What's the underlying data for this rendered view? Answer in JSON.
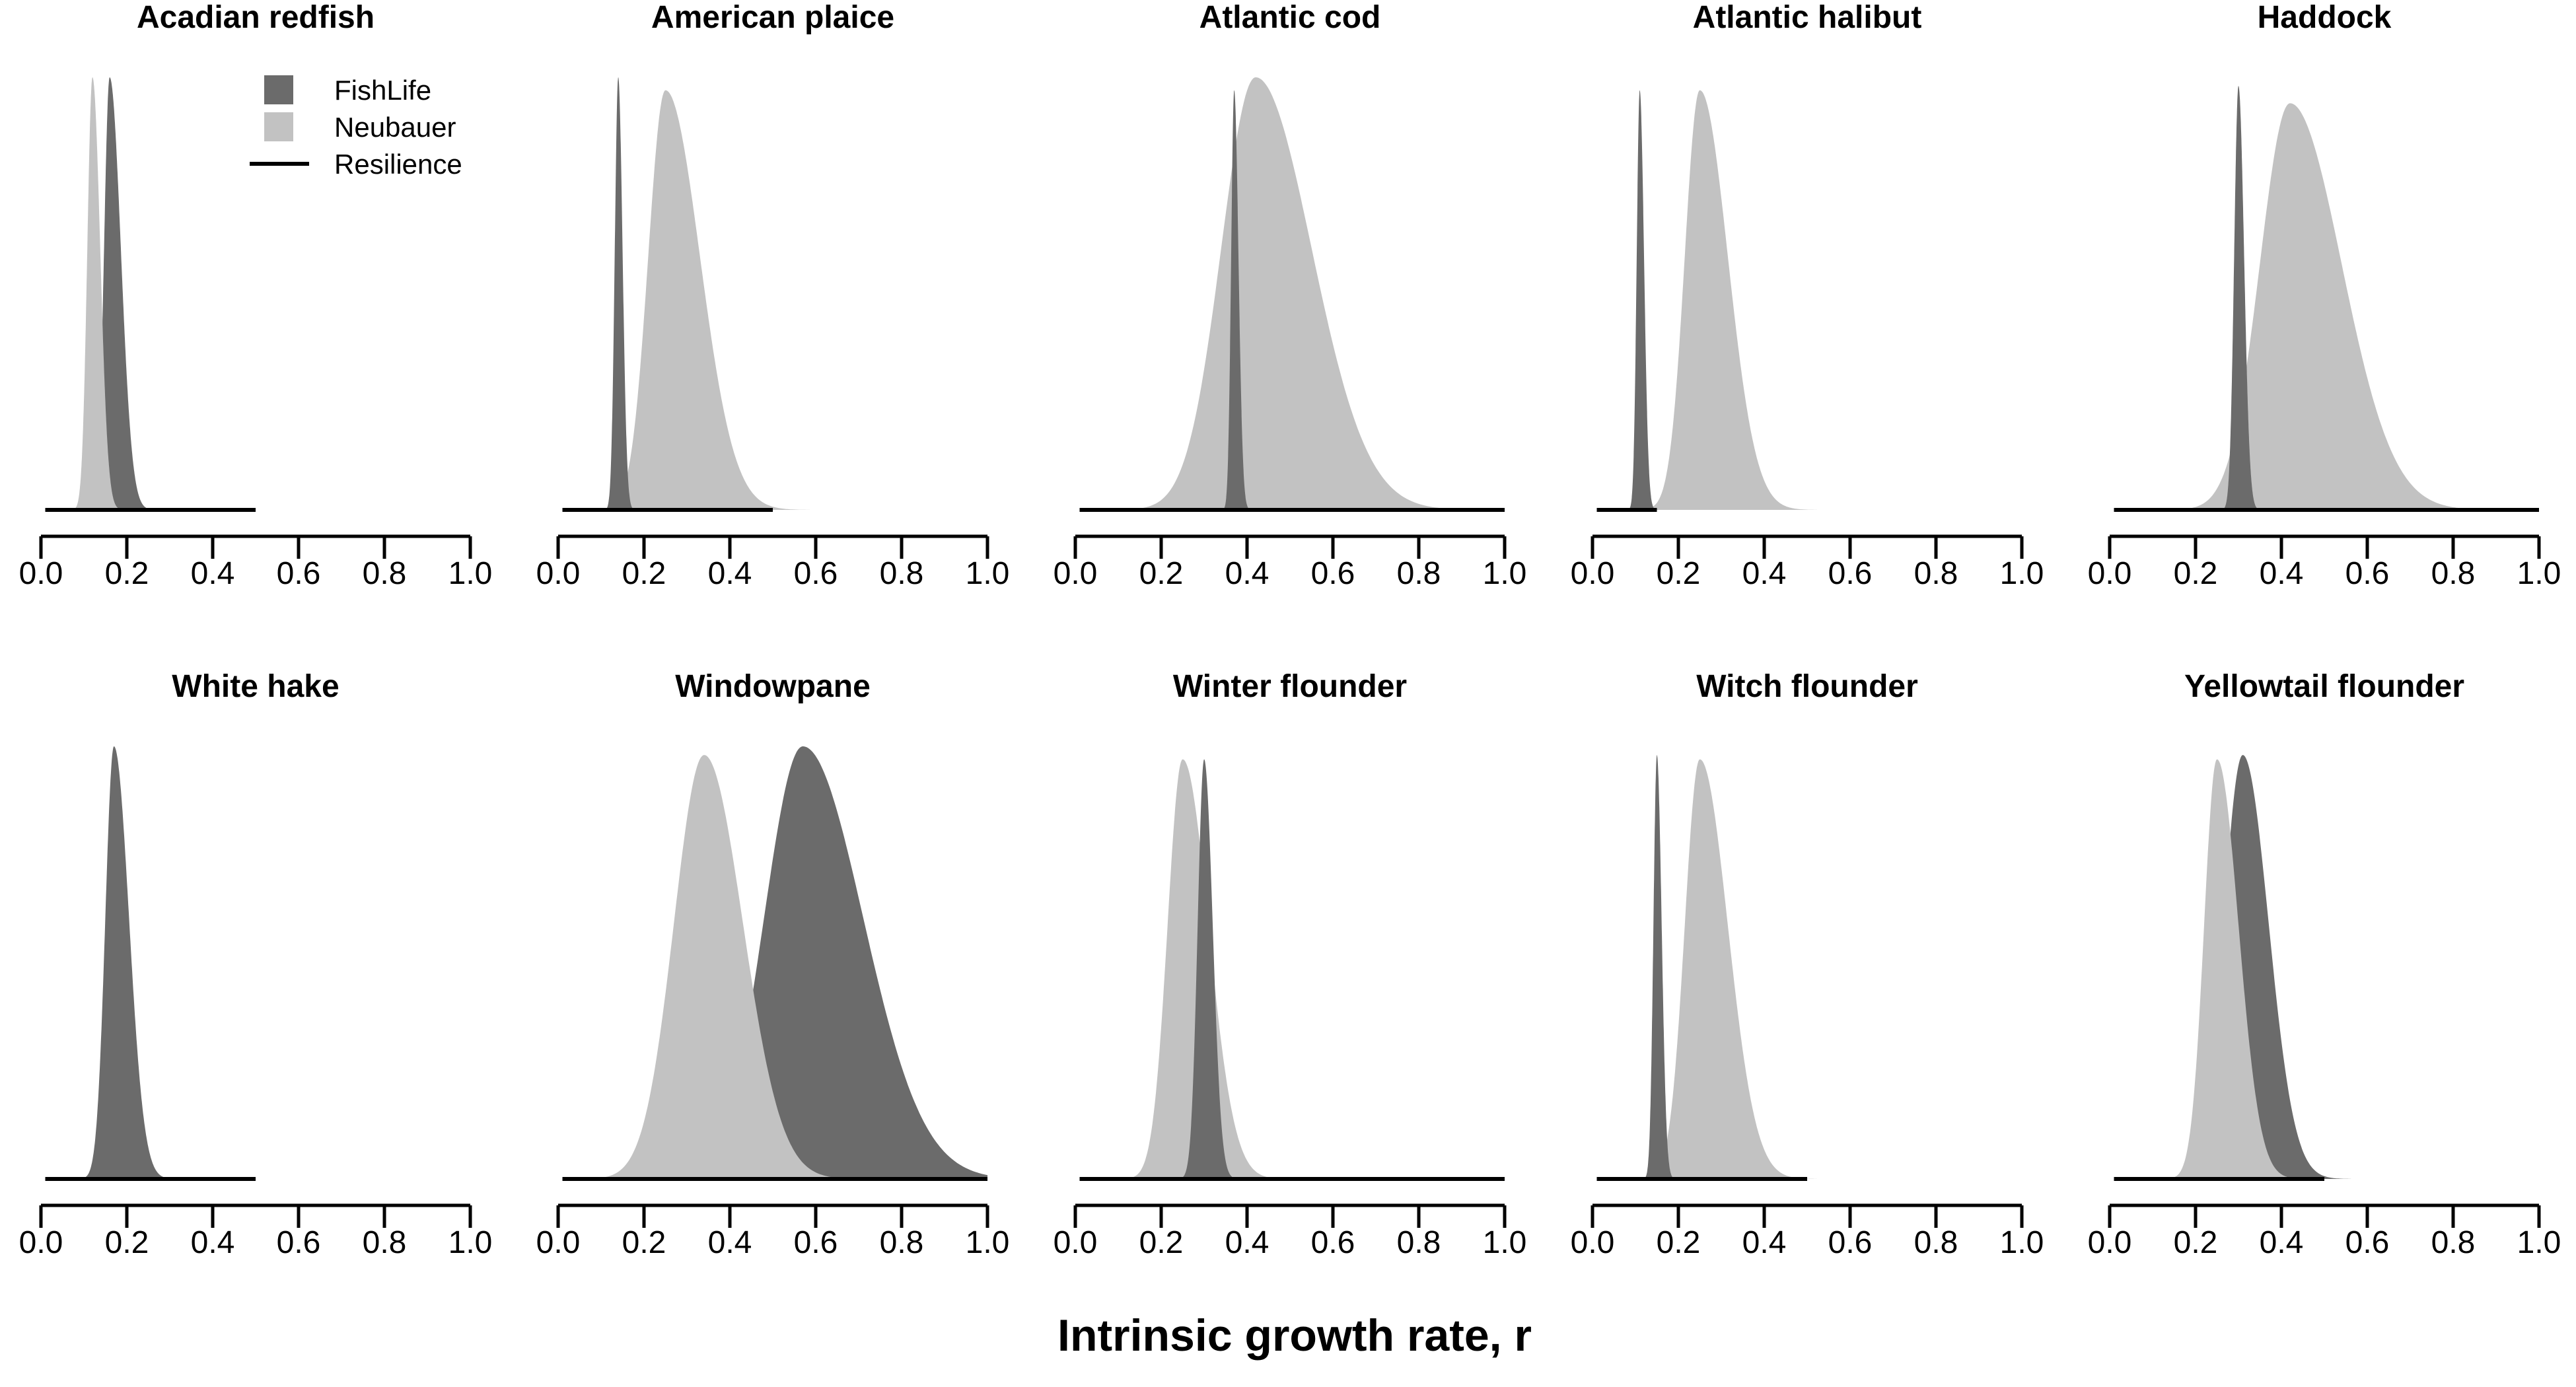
{
  "chart_data": {
    "type": "area",
    "xlabel": "Intrinsic growth rate, r",
    "xlim": [
      0,
      1
    ],
    "xticks": [
      0.0,
      0.2,
      0.4,
      0.6,
      0.8,
      1.0
    ],
    "xtick_labels": [
      "0.0",
      "0.2",
      "0.4",
      "0.6",
      "0.8",
      "1.0"
    ],
    "grid": false,
    "legend": {
      "placement": "top-right of first panel",
      "entries": [
        {
          "label": "FishLife",
          "kind": "fill",
          "color": "#6b6b6b"
        },
        {
          "label": "Neubauer",
          "kind": "fill",
          "color": "#c2c2c2"
        },
        {
          "label": "Resilience",
          "kind": "line",
          "color": "#000000"
        }
      ]
    },
    "colors": {
      "fishlife": "#6b6b6b",
      "neubauer": "#c2c2c2",
      "resilience": "#000000"
    },
    "panels": [
      {
        "title": "Acadian redfish",
        "resilience": [
          0.01,
          0.5
        ],
        "fishlife": {
          "mode": 0.16,
          "sd_left": 0.013,
          "sd_right": 0.026,
          "peak": 1.0
        },
        "neubauer": {
          "mode": 0.12,
          "sd_left": 0.012,
          "sd_right": 0.018,
          "peak": 1.0
        }
      },
      {
        "title": "American plaice",
        "resilience": [
          0.01,
          0.5
        ],
        "fishlife": {
          "mode": 0.14,
          "sd_left": 0.008,
          "sd_right": 0.01,
          "peak": 1.0
        },
        "neubauer": {
          "mode": 0.25,
          "sd_left": 0.04,
          "sd_right": 0.08,
          "peak": 0.97
        }
      },
      {
        "title": "Atlantic cod",
        "resilience": [
          0.01,
          1.0
        ],
        "fishlife": {
          "mode": 0.37,
          "sd_left": 0.007,
          "sd_right": 0.01,
          "peak": 0.97
        },
        "neubauer": {
          "mode": 0.42,
          "sd_left": 0.08,
          "sd_right": 0.13,
          "peak": 1.0
        }
      },
      {
        "title": "Atlantic halibut",
        "resilience": [
          0.01,
          0.15
        ],
        "fishlife": {
          "mode": 0.11,
          "sd_left": 0.007,
          "sd_right": 0.01,
          "peak": 0.97
        },
        "neubauer": {
          "mode": 0.25,
          "sd_left": 0.035,
          "sd_right": 0.065,
          "peak": 0.97
        }
      },
      {
        "title": "Haddock",
        "resilience": [
          0.01,
          1.0
        ],
        "fishlife": {
          "mode": 0.3,
          "sd_left": 0.01,
          "sd_right": 0.013,
          "peak": 0.98
        },
        "neubauer": {
          "mode": 0.42,
          "sd_left": 0.07,
          "sd_right": 0.12,
          "peak": 0.94
        }
      },
      {
        "title": "White hake",
        "resilience": [
          0.01,
          0.5
        ],
        "fishlife": {
          "mode": 0.17,
          "sd_left": 0.02,
          "sd_right": 0.035,
          "peak": 1.0
        },
        "neubauer": null
      },
      {
        "title": "Windowpane",
        "resilience": [
          0.01,
          1.0
        ],
        "fishlife": {
          "mode": 0.57,
          "sd_left": 0.09,
          "sd_right": 0.14,
          "peak": 1.0
        },
        "neubauer": {
          "mode": 0.34,
          "sd_left": 0.07,
          "sd_right": 0.09,
          "peak": 0.98
        }
      },
      {
        "title": "Winter flounder",
        "resilience": [
          0.01,
          1.0
        ],
        "fishlife": {
          "mode": 0.3,
          "sd_left": 0.015,
          "sd_right": 0.02,
          "peak": 0.97
        },
        "neubauer": {
          "mode": 0.25,
          "sd_left": 0.035,
          "sd_right": 0.06,
          "peak": 0.97
        }
      },
      {
        "title": "Witch flounder",
        "resilience": [
          0.01,
          0.5
        ],
        "fishlife": {
          "mode": 0.15,
          "sd_left": 0.008,
          "sd_right": 0.011,
          "peak": 0.98
        },
        "neubauer": {
          "mode": 0.25,
          "sd_left": 0.035,
          "sd_right": 0.065,
          "peak": 0.97
        }
      },
      {
        "title": "Yellowtail flounder",
        "resilience": [
          0.01,
          0.5
        ],
        "fishlife": {
          "mode": 0.31,
          "sd_left": 0.045,
          "sd_right": 0.06,
          "peak": 0.98
        },
        "neubauer": {
          "mode": 0.25,
          "sd_left": 0.03,
          "sd_right": 0.05,
          "peak": 0.97
        }
      }
    ]
  }
}
